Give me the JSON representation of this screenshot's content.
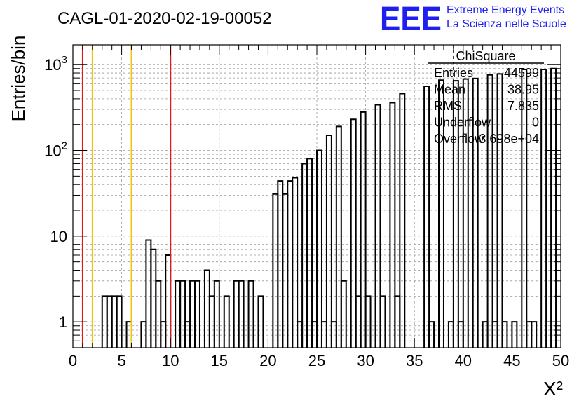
{
  "chart_data": {
    "type": "bar",
    "title": "CAGL-01-2020-02-19-00052",
    "xlabel": "X²",
    "ylabel": "Entries/bin",
    "x_scale": "linear",
    "y_scale": "log",
    "xlim": [
      0,
      50
    ],
    "ylim": [
      0.5,
      1700
    ],
    "grid": true,
    "bin_width": 0.5,
    "x_ticks": [
      0,
      5,
      10,
      15,
      20,
      25,
      30,
      35,
      40,
      45,
      50
    ],
    "x_tick_labels": [
      "0",
      "5",
      "10",
      "15",
      "20",
      "25",
      "30",
      "35",
      "40",
      "45",
      "50"
    ],
    "y_ticks": [
      1,
      10,
      100,
      1000
    ],
    "y_tick_labels": [
      "1",
      "10",
      "10²",
      "10³"
    ],
    "bins": [
      {
        "x": 3.0,
        "y": 2
      },
      {
        "x": 3.5,
        "y": 2
      },
      {
        "x": 4.0,
        "y": 2
      },
      {
        "x": 4.5,
        "y": 2
      },
      {
        "x": 5.5,
        "y": 1
      },
      {
        "x": 7.0,
        "y": 1
      },
      {
        "x": 7.5,
        "y": 9
      },
      {
        "x": 8.0,
        "y": 7
      },
      {
        "x": 8.5,
        "y": 3
      },
      {
        "x": 9.0,
        "y": 1
      },
      {
        "x": 9.5,
        "y": 6
      },
      {
        "x": 10.5,
        "y": 3
      },
      {
        "x": 11.0,
        "y": 3
      },
      {
        "x": 11.5,
        "y": 1
      },
      {
        "x": 12.0,
        "y": 3
      },
      {
        "x": 12.5,
        "y": 3
      },
      {
        "x": 13.5,
        "y": 4
      },
      {
        "x": 14.0,
        "y": 2
      },
      {
        "x": 14.5,
        "y": 3
      },
      {
        "x": 15.5,
        "y": 2
      },
      {
        "x": 16.5,
        "y": 3
      },
      {
        "x": 17.0,
        "y": 3
      },
      {
        "x": 18.0,
        "y": 3
      },
      {
        "x": 19.0,
        "y": 2
      },
      {
        "x": 20.5,
        "y": 31
      },
      {
        "x": 21.0,
        "y": 44
      },
      {
        "x": 21.5,
        "y": 31
      },
      {
        "x": 22.0,
        "y": 44
      },
      {
        "x": 22.5,
        "y": 48
      },
      {
        "x": 23.0,
        "y": 1
      },
      {
        "x": 23.5,
        "y": 70
      },
      {
        "x": 24.0,
        "y": 80
      },
      {
        "x": 24.5,
        "y": 1
      },
      {
        "x": 25.0,
        "y": 100
      },
      {
        "x": 25.5,
        "y": 1
      },
      {
        "x": 26.0,
        "y": 150
      },
      {
        "x": 26.5,
        "y": 1
      },
      {
        "x": 27.0,
        "y": 190
      },
      {
        "x": 27.5,
        "y": 3
      },
      {
        "x": 28.5,
        "y": 230
      },
      {
        "x": 29.0,
        "y": 2
      },
      {
        "x": 29.5,
        "y": 280
      },
      {
        "x": 30.0,
        "y": 2
      },
      {
        "x": 31.0,
        "y": 340
      },
      {
        "x": 31.5,
        "y": 2
      },
      {
        "x": 32.5,
        "y": 360
      },
      {
        "x": 33.0,
        "y": 2
      },
      {
        "x": 33.5,
        "y": 460
      },
      {
        "x": 36.0,
        "y": 560
      },
      {
        "x": 36.5,
        "y": 1
      },
      {
        "x": 37.5,
        "y": 660
      },
      {
        "x": 38.5,
        "y": 1
      },
      {
        "x": 39.0,
        "y": 650
      },
      {
        "x": 39.5,
        "y": 1
      },
      {
        "x": 40.0,
        "y": 680
      },
      {
        "x": 41.0,
        "y": 690
      },
      {
        "x": 42.0,
        "y": 1
      },
      {
        "x": 42.5,
        "y": 760
      },
      {
        "x": 43.0,
        "y": 1
      },
      {
        "x": 43.5,
        "y": 780
      },
      {
        "x": 44.0,
        "y": 1
      },
      {
        "x": 45.0,
        "y": 1
      },
      {
        "x": 46.0,
        "y": 880
      },
      {
        "x": 46.5,
        "y": 1
      },
      {
        "x": 47.0,
        "y": 1
      },
      {
        "x": 48.0,
        "y": 880
      },
      {
        "x": 49.0,
        "y": 900
      }
    ],
    "vertical_lines": [
      {
        "x": 1.0,
        "color": "#e11919"
      },
      {
        "x": 2.0,
        "color": "#f2c40f"
      },
      {
        "x": 6.0,
        "color": "#f2c40f"
      },
      {
        "x": 10.0,
        "color": "#e11919"
      },
      {
        "x": 39.0,
        "color": "#000000",
        "style": "dashed"
      }
    ],
    "stats_box": {
      "title": "ChiSquare",
      "rows": [
        {
          "label": "Entries",
          "value": "44599"
        },
        {
          "label": "Mean",
          "value": "38.95"
        },
        {
          "label": "RMS",
          "value": "7.835"
        },
        {
          "label": "Underflow",
          "value": "0"
        },
        {
          "label": "Overflow",
          "value": "3.698e+04"
        }
      ]
    },
    "logo": {
      "mark": "EEE",
      "line1": "Extreme Energy Events",
      "line2": "La Scienza nelle Scuole",
      "color": "#1f1ff0"
    },
    "colors": {
      "histogram": "#000000",
      "grid": "#999999"
    }
  }
}
